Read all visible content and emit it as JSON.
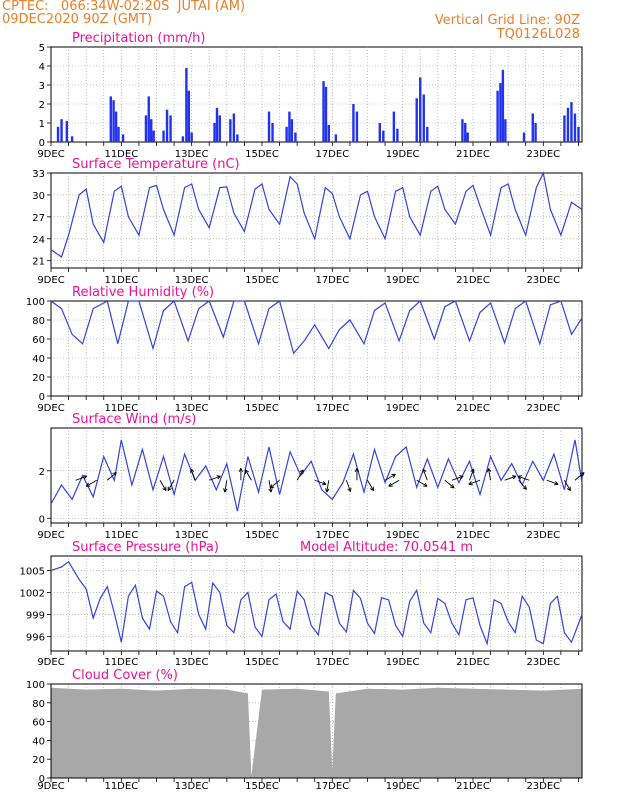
{
  "header": {
    "line1": "CPTEC:   066:34W-02:20S  JUTAI (AM)",
    "line2": "09DEC2020 90Z (GMT)",
    "right1": "Vertical Grid Line: 90Z",
    "right2": "TQ0126L028"
  },
  "colors": {
    "line": "#3344dd",
    "bar": "#2233ee",
    "title": "#ee1199",
    "header": "#e8802a",
    "cloud": "#a8a8a8"
  },
  "x_ticks": [
    "9DEC",
    "11DEC",
    "13DEC",
    "15DEC",
    "17DEC",
    "19DEC",
    "21DEC",
    "23DEC"
  ],
  "chart_data": [
    {
      "id": "precip",
      "type": "bar",
      "title": "Precipitation (mm/h)",
      "ylim": [
        0,
        5
      ],
      "yticks": [
        "0",
        "1",
        "2",
        "3",
        "4",
        "5"
      ],
      "x_range_days": [
        9,
        24.1
      ],
      "events": [
        {
          "d": 9.2,
          "v": 0.8
        },
        {
          "d": 9.3,
          "v": 1.2
        },
        {
          "d": 9.45,
          "v": 1.1
        },
        {
          "d": 9.6,
          "v": 0.3
        },
        {
          "d": 10.7,
          "v": 2.4
        },
        {
          "d": 10.78,
          "v": 2.2
        },
        {
          "d": 10.85,
          "v": 1.6
        },
        {
          "d": 10.92,
          "v": 0.8
        },
        {
          "d": 11.05,
          "v": 0.4
        },
        {
          "d": 11.7,
          "v": 1.4
        },
        {
          "d": 11.78,
          "v": 2.4
        },
        {
          "d": 11.85,
          "v": 1.2
        },
        {
          "d": 11.92,
          "v": 0.6
        },
        {
          "d": 12.2,
          "v": 0.6
        },
        {
          "d": 12.3,
          "v": 1.7
        },
        {
          "d": 12.4,
          "v": 1.4
        },
        {
          "d": 12.75,
          "v": 0.3
        },
        {
          "d": 12.85,
          "v": 3.9
        },
        {
          "d": 12.92,
          "v": 2.7
        },
        {
          "d": 13.0,
          "v": 0.5
        },
        {
          "d": 13.65,
          "v": 1.0
        },
        {
          "d": 13.72,
          "v": 1.8
        },
        {
          "d": 13.8,
          "v": 1.4
        },
        {
          "d": 14.1,
          "v": 1.2
        },
        {
          "d": 14.2,
          "v": 1.5
        },
        {
          "d": 14.3,
          "v": 0.4
        },
        {
          "d": 15.2,
          "v": 1.6
        },
        {
          "d": 15.3,
          "v": 1.0
        },
        {
          "d": 15.7,
          "v": 0.8
        },
        {
          "d": 15.78,
          "v": 1.6
        },
        {
          "d": 15.85,
          "v": 1.2
        },
        {
          "d": 15.95,
          "v": 0.5
        },
        {
          "d": 16.75,
          "v": 3.2
        },
        {
          "d": 16.82,
          "v": 2.9
        },
        {
          "d": 16.9,
          "v": 0.9
        },
        {
          "d": 17.1,
          "v": 0.4
        },
        {
          "d": 17.6,
          "v": 2.0
        },
        {
          "d": 17.7,
          "v": 1.6
        },
        {
          "d": 18.35,
          "v": 1.0
        },
        {
          "d": 18.45,
          "v": 0.6
        },
        {
          "d": 18.75,
          "v": 1.6
        },
        {
          "d": 18.85,
          "v": 0.7
        },
        {
          "d": 19.4,
          "v": 2.3
        },
        {
          "d": 19.5,
          "v": 3.4
        },
        {
          "d": 19.6,
          "v": 2.5
        },
        {
          "d": 19.7,
          "v": 0.8
        },
        {
          "d": 20.7,
          "v": 1.2
        },
        {
          "d": 20.78,
          "v": 1.0
        },
        {
          "d": 20.85,
          "v": 0.5
        },
        {
          "d": 21.7,
          "v": 2.7
        },
        {
          "d": 21.78,
          "v": 3.1
        },
        {
          "d": 21.85,
          "v": 3.8
        },
        {
          "d": 21.92,
          "v": 1.2
        },
        {
          "d": 22.45,
          "v": 0.5
        },
        {
          "d": 22.7,
          "v": 1.5
        },
        {
          "d": 22.78,
          "v": 1.0
        },
        {
          "d": 23.6,
          "v": 1.4
        },
        {
          "d": 23.7,
          "v": 1.8
        },
        {
          "d": 23.8,
          "v": 2.1
        },
        {
          "d": 23.9,
          "v": 1.5
        },
        {
          "d": 24.0,
          "v": 0.8
        }
      ]
    },
    {
      "id": "temp",
      "type": "line",
      "title": "Surface Temperature (nC)",
      "ylim": [
        20,
        33
      ],
      "yticks": [
        "21",
        "24",
        "27",
        "30",
        "33"
      ],
      "x": [
        9,
        9.3,
        9.5,
        9.8,
        10.0,
        10.2,
        10.5,
        10.8,
        11.0,
        11.2,
        11.5,
        11.8,
        12.0,
        12.2,
        12.5,
        12.8,
        13.0,
        13.2,
        13.5,
        13.8,
        14.0,
        14.2,
        14.5,
        14.8,
        15.0,
        15.2,
        15.5,
        15.8,
        16.0,
        16.2,
        16.5,
        16.8,
        17.0,
        17.2,
        17.5,
        17.8,
        18.0,
        18.2,
        18.5,
        18.8,
        19.0,
        19.2,
        19.5,
        19.8,
        20.0,
        20.2,
        20.5,
        20.8,
        21.0,
        21.2,
        21.5,
        21.8,
        22.0,
        22.2,
        22.5,
        22.8,
        23.0,
        23.2,
        23.5,
        23.8,
        24.1
      ],
      "y": [
        22.5,
        21.5,
        24.5,
        30.0,
        30.8,
        26.0,
        23.5,
        30.5,
        31.2,
        27.0,
        24.5,
        31.0,
        31.3,
        28.0,
        24.5,
        31.0,
        31.5,
        28.0,
        25.5,
        31.0,
        31.1,
        27.5,
        25.0,
        30.8,
        31.5,
        28.0,
        26.0,
        32.5,
        31.5,
        27.5,
        24.0,
        31.0,
        30.2,
        27.0,
        24.0,
        30.0,
        30.5,
        27.0,
        24.0,
        30.5,
        31.0,
        27.0,
        24.5,
        30.5,
        31.2,
        28.0,
        26.0,
        30.5,
        31.3,
        28.5,
        24.5,
        31.0,
        31.5,
        28.0,
        24.5,
        31.0,
        33.0,
        28.0,
        24.5,
        29.0,
        28.0
      ]
    },
    {
      "id": "rh",
      "type": "line",
      "title": "Relative Humidity (%)",
      "ylim": [
        0,
        100
      ],
      "yticks": [
        "0",
        "20",
        "40",
        "60",
        "80",
        "100"
      ],
      "x": [
        9,
        9.3,
        9.6,
        9.9,
        10.2,
        10.6,
        10.9,
        11.2,
        11.5,
        11.9,
        12.2,
        12.5,
        12.9,
        13.2,
        13.5,
        13.9,
        14.2,
        14.5,
        14.9,
        15.2,
        15.5,
        15.9,
        16.2,
        16.5,
        16.9,
        17.2,
        17.5,
        17.9,
        18.2,
        18.5,
        18.9,
        19.2,
        19.5,
        19.9,
        20.2,
        20.5,
        20.9,
        21.2,
        21.5,
        21.9,
        22.2,
        22.5,
        22.9,
        23.2,
        23.5,
        23.8,
        24.1
      ],
      "y": [
        100,
        92,
        65,
        55,
        92,
        100,
        55,
        100,
        100,
        50,
        90,
        100,
        58,
        92,
        100,
        62,
        100,
        100,
        55,
        92,
        100,
        45,
        58,
        75,
        50,
        70,
        80,
        55,
        90,
        98,
        58,
        90,
        100,
        60,
        94,
        100,
        58,
        88,
        98,
        56,
        92,
        100,
        55,
        96,
        100,
        65,
        82
      ]
    },
    {
      "id": "wind",
      "type": "line",
      "title": "Surface Wind (m/s)",
      "ylim": [
        -0.2,
        3.8
      ],
      "yticks": [
        "0",
        "2"
      ],
      "x": [
        9,
        9.3,
        9.6,
        9.9,
        10.2,
        10.5,
        10.8,
        11.0,
        11.3,
        11.6,
        11.9,
        12.2,
        12.5,
        12.8,
        13.1,
        13.4,
        13.7,
        14.0,
        14.3,
        14.6,
        14.9,
        15.2,
        15.5,
        15.8,
        16.1,
        16.4,
        16.7,
        17.0,
        17.3,
        17.6,
        17.9,
        18.2,
        18.5,
        18.8,
        19.1,
        19.4,
        19.7,
        20.0,
        20.3,
        20.6,
        20.9,
        21.2,
        21.5,
        21.8,
        22.1,
        22.4,
        22.7,
        23.0,
        23.3,
        23.6,
        23.9,
        24.1
      ],
      "y": [
        0.6,
        1.4,
        0.8,
        1.8,
        0.9,
        2.6,
        1.6,
        3.3,
        1.4,
        2.9,
        1.2,
        2.6,
        1.0,
        2.7,
        1.6,
        2.2,
        1.2,
        2.3,
        0.3,
        2.6,
        1.1,
        3.0,
        1.0,
        2.8,
        1.8,
        2.4,
        1.2,
        0.8,
        1.5,
        2.7,
        1.1,
        2.9,
        1.5,
        2.6,
        3.0,
        1.3,
        2.5,
        1.3,
        2.5,
        1.5,
        2.4,
        1.0,
        2.6,
        1.6,
        2.3,
        1.4,
        2.4,
        1.6,
        2.7,
        1.2,
        3.3,
        1.5
      ]
    },
    {
      "id": "pres",
      "type": "line",
      "title": "Surface Pressure (hPa)",
      "annotation": "Model Altitude: 70.0541 m",
      "ylim": [
        994,
        1007
      ],
      "yticks": [
        "996",
        "999",
        "1002",
        "1005"
      ],
      "x": [
        9,
        9.3,
        9.5,
        9.8,
        10.0,
        10.2,
        10.4,
        10.6,
        10.8,
        11.0,
        11.2,
        11.4,
        11.6,
        11.8,
        12.0,
        12.2,
        12.4,
        12.6,
        12.8,
        13.0,
        13.2,
        13.4,
        13.6,
        13.8,
        14.0,
        14.2,
        14.4,
        14.6,
        14.8,
        15.0,
        15.2,
        15.4,
        15.6,
        15.8,
        16.0,
        16.2,
        16.4,
        16.6,
        16.8,
        17.0,
        17.2,
        17.4,
        17.6,
        17.8,
        18.0,
        18.2,
        18.4,
        18.6,
        18.8,
        19.0,
        19.2,
        19.4,
        19.6,
        19.8,
        20.0,
        20.2,
        20.4,
        20.6,
        20.8,
        21.0,
        21.2,
        21.4,
        21.6,
        21.8,
        22.0,
        22.2,
        22.4,
        22.6,
        22.8,
        23.0,
        23.2,
        23.4,
        23.6,
        23.8,
        24.1
      ],
      "y": [
        1005.0,
        1005.5,
        1006.2,
        1003.8,
        1002.5,
        998.5,
        1001.2,
        1002.8,
        999.2,
        995.2,
        1001.5,
        1003.0,
        998.5,
        997.0,
        1002.2,
        1001.5,
        998.0,
        996.5,
        1002.8,
        1003.4,
        999.0,
        997.0,
        1003.3,
        1002.0,
        997.5,
        996.5,
        1001.0,
        1002.0,
        997.3,
        996.0,
        1001.0,
        1001.8,
        998.0,
        997.0,
        1002.2,
        1001.0,
        997.5,
        996.2,
        1002.0,
        1001.5,
        997.8,
        996.6,
        1002.3,
        1001.2,
        997.8,
        996.4,
        1001.3,
        1001.0,
        997.5,
        996.0,
        1000.8,
        1002.3,
        997.8,
        996.5,
        1001.2,
        1000.5,
        997.8,
        996.2,
        1001.0,
        1001.3,
        997.5,
        995.0,
        1001.0,
        1000.5,
        998.0,
        996.5,
        1001.5,
        1000.0,
        995.5,
        995.0,
        1000.5,
        1001.5,
        996.5,
        995.2,
        999.0
      ]
    },
    {
      "id": "cloud",
      "type": "area",
      "title": "Cloud Cover (%)",
      "ylim": [
        0,
        100
      ],
      "yticks": [
        "0",
        "20",
        "40",
        "60",
        "80",
        "100"
      ],
      "x": [
        9,
        10,
        11,
        12,
        13,
        14,
        14.6,
        14.7,
        15,
        16,
        16.9,
        17.0,
        17.1,
        18,
        19,
        20,
        21,
        22,
        23,
        24.1
      ],
      "y": [
        96,
        94,
        95,
        93,
        95,
        94,
        90,
        2,
        94,
        95,
        92,
        8,
        90,
        95,
        94,
        96,
        95,
        94,
        93,
        95
      ]
    }
  ]
}
